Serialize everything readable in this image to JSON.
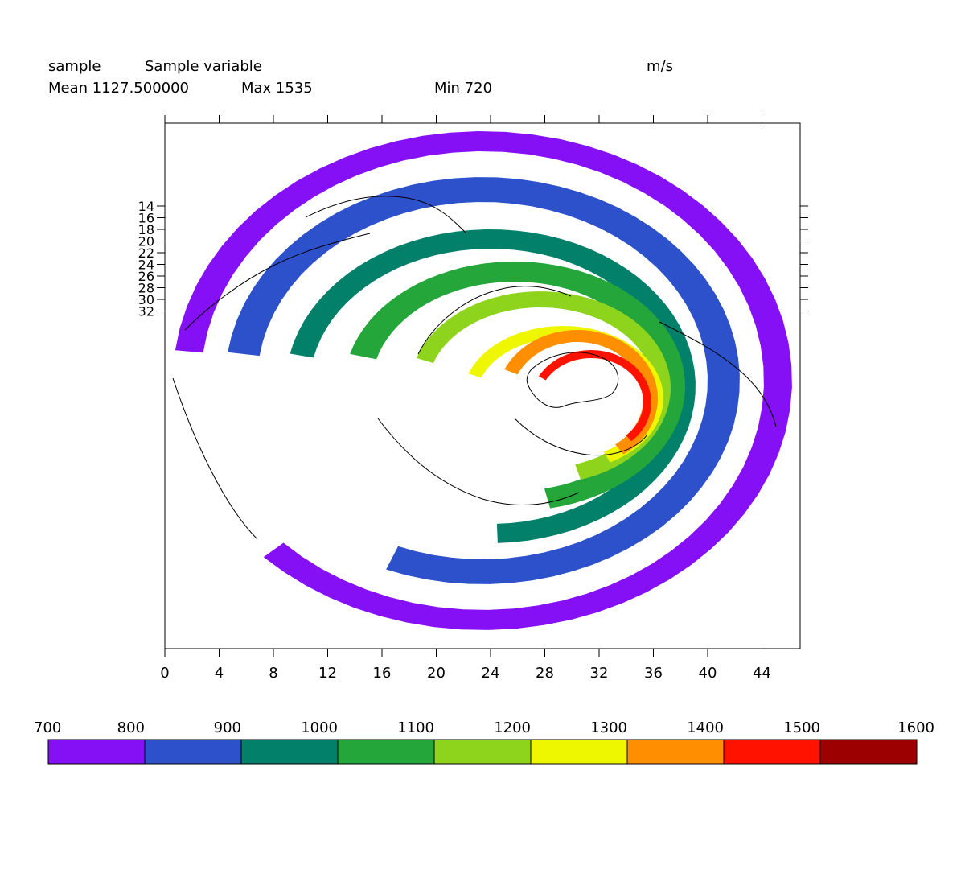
{
  "header": {
    "name": "sample",
    "long_name": "Sample variable",
    "units": "m/s",
    "mean": "Mean 1127.500000",
    "max": "Max 1535",
    "min": "Min 720"
  },
  "chart_data": {
    "type": "heatmap",
    "projection": "polar-stereographic (north pole view)",
    "x_ticks": [
      "0",
      "4",
      "8",
      "12",
      "16",
      "20",
      "24",
      "28",
      "32",
      "36",
      "40",
      "44"
    ],
    "y_ticks": [
      "14",
      "16",
      "18",
      "20",
      "22",
      "24",
      "26",
      "28",
      "30",
      "32"
    ],
    "bands": [
      {
        "range": [
          700,
          800
        ],
        "label": "outermost ring"
      },
      {
        "range": [
          800,
          900
        ],
        "label": "ring 2"
      },
      {
        "range": [
          900,
          1000
        ],
        "label": "ring 3"
      },
      {
        "range": [
          1000,
          1100
        ],
        "label": "ring 4"
      },
      {
        "range": [
          1100,
          1200
        ],
        "label": "ring 5"
      },
      {
        "range": [
          1200,
          1300
        ],
        "label": "ring 6"
      },
      {
        "range": [
          1300,
          1400
        ],
        "label": "ring 7"
      },
      {
        "range": [
          1400,
          1500
        ],
        "label": "ring 8"
      }
    ],
    "colorbar": {
      "levels": [
        "700",
        "800",
        "900",
        "1000",
        "1100",
        "1200",
        "1300",
        "1400",
        "1500",
        "1600"
      ],
      "colors": [
        "#8510f5",
        "#2c51cb",
        "#03806a",
        "#24a63b",
        "#8ed41c",
        "#eef700",
        "#ff8e00",
        "#ff1200",
        "#9c0000"
      ]
    },
    "grid": false,
    "legend": "bottom colorbar"
  }
}
